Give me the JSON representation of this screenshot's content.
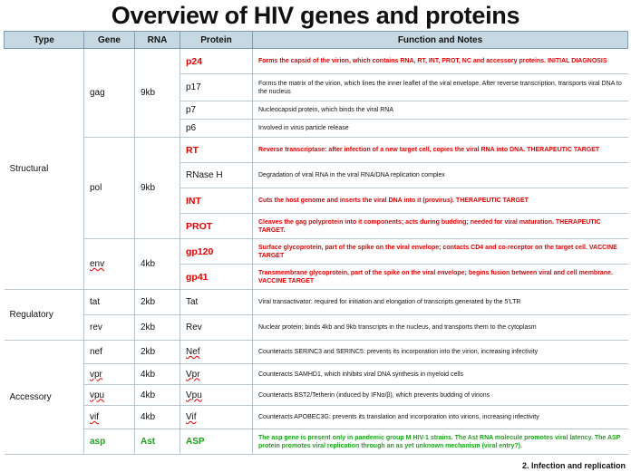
{
  "title": "Overview of HIV genes and proteins",
  "columns": [
    "Type",
    "Gene",
    "RNA",
    "Protein",
    "Function and Notes"
  ],
  "rows": [
    {
      "type": "Structural",
      "gene": "gag",
      "rna": "9kb",
      "protein": "p24",
      "notes": "Forms the capsid of the virion, which contains RNA, RT, INT, PROT, NC and accessory proteins. INITIAL DIAGNOSIS",
      "style": "red"
    },
    {
      "protein": "p17",
      "notes": "Forms the matrix of the virion, which lines the inner leaflet of the viral envelope. After reverse transcription, transports viral DNA to the nucleus",
      "style": "normal"
    },
    {
      "protein": "p7",
      "notes": "Nucleocapsid protein, which binds the viral RNA",
      "style": "normal"
    },
    {
      "protein": "p6",
      "notes": "Involved in virus particle release",
      "style": "normal"
    },
    {
      "gene": "pol",
      "rna": "9kb",
      "protein": "RT",
      "notes": "Reverse transcriptase: after infection of a new target cell, copies the viral RNA into DNA. THERAPEUTIC TARGET",
      "style": "red"
    },
    {
      "protein": "RNase H",
      "notes": "Degradation of viral RNA in the viral RNA/DNA replication complex",
      "style": "normal"
    },
    {
      "protein": "INT",
      "notes": "Cuts the host genome and inserts the viral DNA into it (provirus). THERAPEUTIC TARGET",
      "style": "red"
    },
    {
      "protein": "PROT",
      "notes": "Cleaves the gag polyprotein into it components; acts during budding; needed for viral maturation. THERAPEUTIC TARGET.",
      "style": "red"
    },
    {
      "gene": "env",
      "rna": "4kb",
      "protein": "gp120",
      "notes": "Surface glycoprotein, part of the spike on the viral envelope; contacts CD4 and co-receptor on the target cell. VACCINE TARGET",
      "style": "red"
    },
    {
      "protein": "gp41",
      "notes": "Transmembrane glycoprotein, part of the spike on the viral envelope; begins fusion between viral and cell membrane. VACCINE TARGET",
      "style": "red"
    },
    {
      "type": "Regulatory",
      "gene": "tat",
      "rna": "2kb",
      "protein": "Tat",
      "notes": "Viral transactivator: required for initiation and elongation of transcripts generated by the 5'LTR",
      "style": "normal"
    },
    {
      "gene": "rev",
      "rna": "2kb",
      "protein": "Rev",
      "notes": "Nuclear protein; binds 4kb and 9kb transcripts in the nucleus, and transports them to the cytoplasm",
      "style": "normal"
    },
    {
      "type": "Accessory",
      "gene": "nef",
      "rna": "2kb",
      "protein": "Nef",
      "notes": "Counteracts SERINC3 and SERINC5: prevents its incorporation into the virion, increasing infectivity",
      "style": "normal"
    },
    {
      "gene": "vpr",
      "rna": "4kb",
      "protein": "Vpr",
      "notes": "Counteracts SAMHD1, which inhibits viral DNA synthesis in myeloid cells",
      "style": "normal"
    },
    {
      "gene": "vpu",
      "rna": "4kb",
      "protein": "Vpu",
      "notes": "Counteracts BST2/Tetherin (induced by IFNα/β), which prevents budding of virions",
      "style": "normal"
    },
    {
      "gene": "vif",
      "rna": "4kb",
      "protein": "Vif",
      "notes": "Counteracts APOBEC3G: prevents its translation and incorporation into virions, increasing infectivity",
      "style": "normal"
    },
    {
      "gene": "asp",
      "rna": "Ast",
      "protein": "ASP",
      "notes": "The asp gene is present only in pandemic group M HIV-1 strains. The Ast RNA molecule promotes viral latency. The ASP protein promotes viral replication through an as yet unknown mechanism (viral entry?).",
      "style": "green"
    }
  ],
  "footer": "2. Infection and replication"
}
